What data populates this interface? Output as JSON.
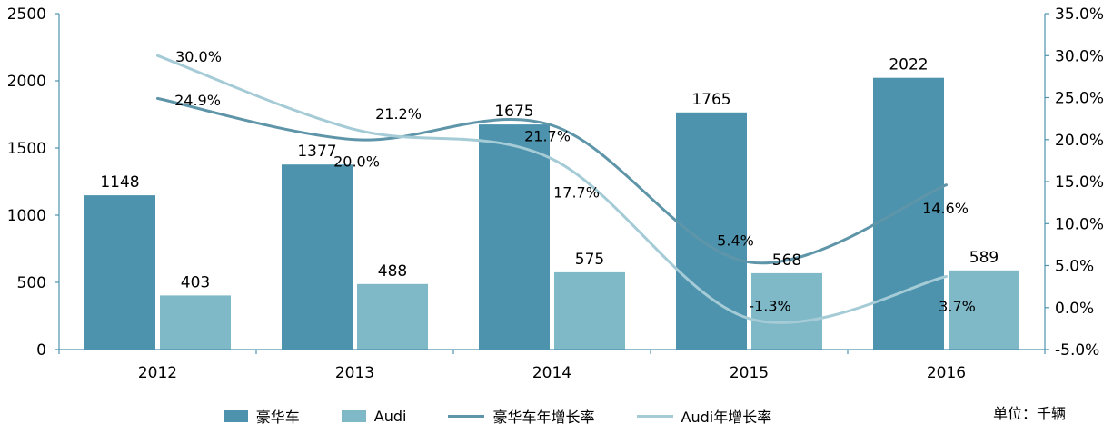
{
  "chart_data": {
    "type": "combo-bar-line",
    "categories": [
      "2012",
      "2013",
      "2014",
      "2015",
      "2016"
    ],
    "bar_series": [
      {
        "name": "豪华车",
        "color": "#4d93ae",
        "axis": "left",
        "values": [
          1148,
          1377,
          1675,
          1765,
          2022
        ],
        "value_labels": [
          "1148",
          "1377",
          "1675",
          "1765",
          "2022"
        ]
      },
      {
        "name": "Audi",
        "color": "#7fb8c7",
        "axis": "left",
        "values": [
          403,
          488,
          575,
          568,
          589
        ],
        "value_labels": [
          "403",
          "488",
          "575",
          "568",
          "589"
        ]
      }
    ],
    "line_series": [
      {
        "name": "豪华车年增长率",
        "color": "#5e95a9",
        "axis": "right",
        "values": [
          24.9,
          20.0,
          21.7,
          5.4,
          14.6
        ],
        "value_labels": [
          "24.9%",
          "20.0%",
          "21.7%",
          "5.4%",
          "14.6%"
        ]
      },
      {
        "name": "Audi年增长率",
        "color": "#a5cbd6",
        "axis": "right",
        "values": [
          30.0,
          21.2,
          17.7,
          -1.3,
          3.7
        ],
        "value_labels": [
          "30.0%",
          "21.2%",
          "17.7%",
          "-1.3%",
          "3.7%"
        ]
      }
    ],
    "left_axis": {
      "min": 0,
      "max": 2500,
      "step": 500,
      "tick_labels": [
        "0",
        "500",
        "1000",
        "1500",
        "2000",
        "2500"
      ]
    },
    "right_axis": {
      "min": -5,
      "max": 35,
      "step": 5,
      "tick_labels": [
        "-5.0%",
        "0.0%",
        "5.0%",
        "10.0%",
        "15.0%",
        "20.0%",
        "25.0%",
        "30.0%",
        "35.0%"
      ]
    },
    "grid": false,
    "legend_position": "bottom",
    "axis_color": "#4d93ae",
    "text_color": "#000000",
    "unit_note": "单位：千辆"
  },
  "legend": {
    "items": [
      {
        "label": "豪华车",
        "type": "bar",
        "color": "#4d93ae"
      },
      {
        "label": "Audi",
        "type": "bar",
        "color": "#7fb8c7"
      },
      {
        "label": "豪华车年增长率",
        "type": "line",
        "color": "#5e95a9"
      },
      {
        "label": "Audi年增长率",
        "type": "line",
        "color": "#a5cbd6"
      }
    ]
  }
}
